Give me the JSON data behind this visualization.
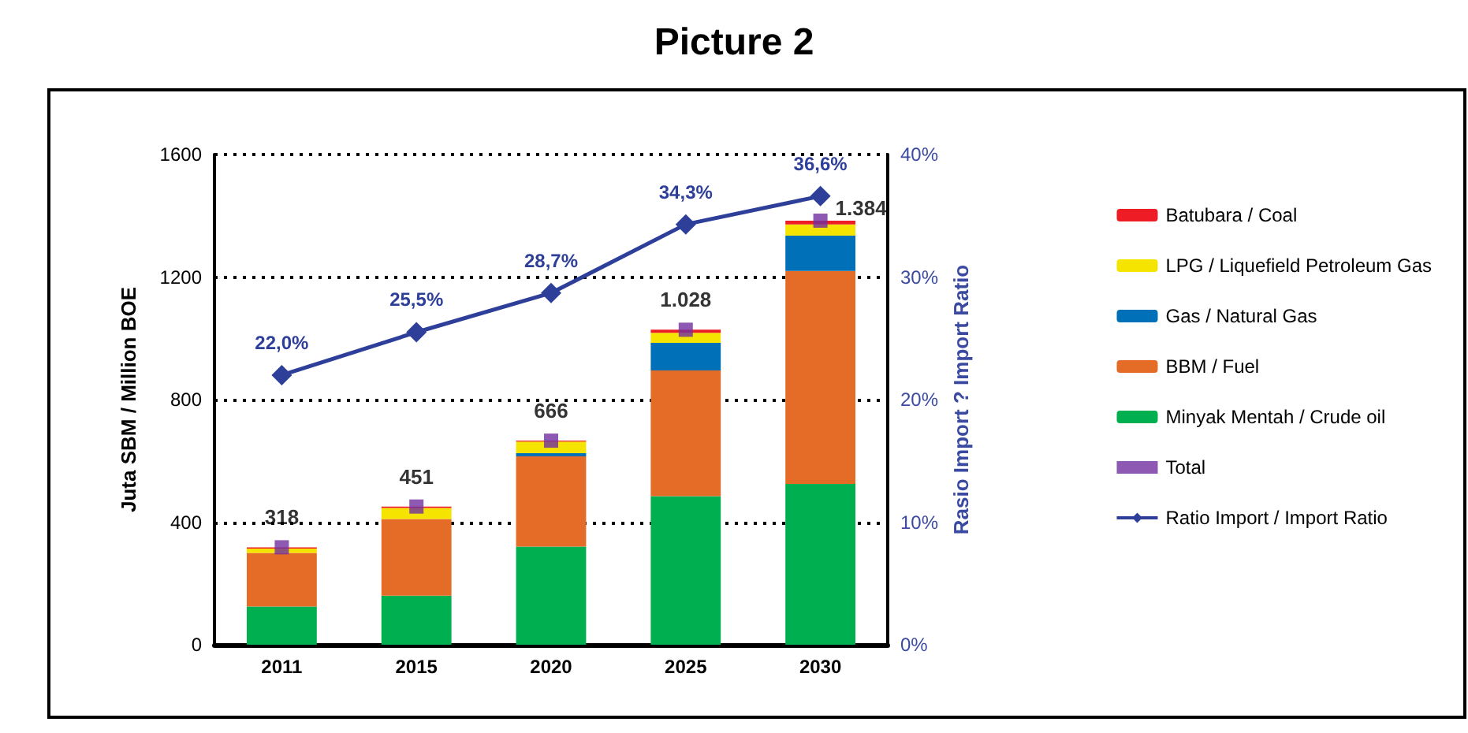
{
  "chart_data": {
    "type": "bar",
    "title": "Picture 2",
    "ylabel": "Juta SBM / Million BOE",
    "y2label": "Rasio Import ? Import Ratio",
    "categories": [
      "2011",
      "2015",
      "2020",
      "2025",
      "2030"
    ],
    "stacked": true,
    "series": [
      {
        "name": "Minyak Mentah / Crude oil",
        "color": "#00b050",
        "values": [
          125,
          160,
          320,
          485,
          525
        ]
      },
      {
        "name": "BBM / Fuel",
        "color": "#e46c26",
        "values": [
          175,
          250,
          295,
          410,
          695
        ]
      },
      {
        "name": "Gas / Natural Gas",
        "color": "#0070b8",
        "values": [
          0,
          0,
          10,
          90,
          115
        ]
      },
      {
        "name": "LPG / Liquefield Petroleum Gas",
        "color": "#f5e400",
        "values": [
          14,
          36,
          38,
          33,
          37
        ]
      },
      {
        "name": "Batubara / Coal",
        "color": "#ee1c25",
        "values": [
          4,
          5,
          3,
          10,
          12
        ]
      },
      {
        "name": "Total",
        "type": "scatter",
        "marker": "square",
        "color": "#7030a0",
        "values": [
          318,
          451,
          666,
          1028,
          1384
        ],
        "value_labels": [
          "318",
          "451",
          "666",
          "1.028",
          "1.384"
        ]
      },
      {
        "name": "Ratio Import / Import Ratio",
        "type": "line",
        "axis": "y2",
        "marker": "diamond",
        "color": "#2e3f9a",
        "values": [
          22.0,
          25.5,
          28.7,
          34.3,
          36.6
        ],
        "value_labels": [
          "22,0%",
          "25,5%",
          "28,7%",
          "34,3%",
          "36,6%"
        ]
      }
    ],
    "ylim": [
      0,
      1600
    ],
    "yticks": [
      0,
      400,
      800,
      1200,
      1600
    ],
    "y2lim": [
      0,
      40
    ],
    "y2ticks": [
      {
        "value": 0,
        "label": "0%"
      },
      {
        "value": 10,
        "label": "10%"
      },
      {
        "value": 20,
        "label": "20%"
      },
      {
        "value": 30,
        "label": "30%"
      },
      {
        "value": 40,
        "label": "40%"
      }
    ],
    "grid": "y",
    "legend": "right"
  }
}
